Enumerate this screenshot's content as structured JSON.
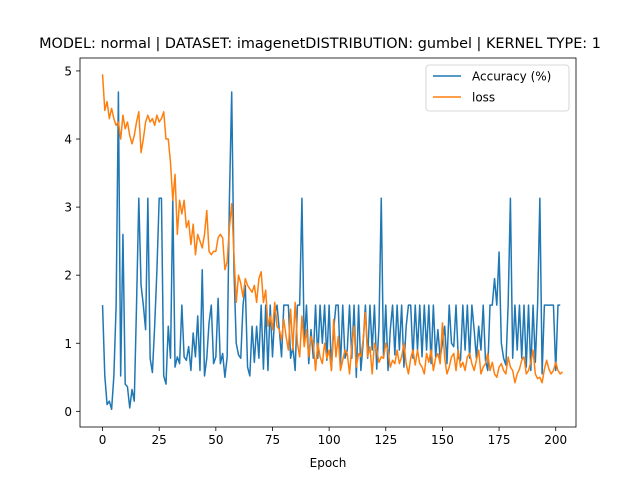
{
  "chart_data": {
    "type": "line",
    "title": "MODEL: normal | DATASET: imagenetDISTRIBUTION: gumbel | KERNEL TYPE: 1",
    "xlabel": "Epoch",
    "ylabel": "",
    "xlim": [
      -9.95,
      208.95
    ],
    "ylim": [
      -0.23,
      5.19
    ],
    "xticks": [
      0,
      25,
      50,
      75,
      100,
      125,
      150,
      175,
      200
    ],
    "yticks": [
      0,
      1,
      2,
      3,
      4,
      5
    ],
    "grid": false,
    "legend": "top-right",
    "series": [
      {
        "name": "Accuracy (%)",
        "color": "#1f77b4",
        "values": [
          1.56,
          0.52,
          0.1,
          0.15,
          0.03,
          0.52,
          1.56,
          4.69,
          0.52,
          2.6,
          0.4,
          0.36,
          0.05,
          0.32,
          0.15,
          1.56,
          3.13,
          1.85,
          1.56,
          1.2,
          3.13,
          0.78,
          0.57,
          1.25,
          2.08,
          3.13,
          3.13,
          0.52,
          0.4,
          1.25,
          0.78,
          3.13,
          0.65,
          0.8,
          0.7,
          1.56,
          0.8,
          0.75,
          0.95,
          0.6,
          1.15,
          0.8,
          1.4,
          0.6,
          2.08,
          0.52,
          0.78,
          1.3,
          1.56,
          0.7,
          0.8,
          1.66,
          0.7,
          0.85,
          0.5,
          0.8,
          3.13,
          4.69,
          2.08,
          1.0,
          0.83,
          0.78,
          1.56,
          1.85,
          0.65,
          0.52,
          1.25,
          0.72,
          1.25,
          0.78,
          1.56,
          0.62,
          1.56,
          0.6,
          1.56,
          0.8,
          1.42,
          1.56,
          1.2,
          0.8,
          1.56,
          1.56,
          1.56,
          0.78,
          0.95,
          0.6,
          1.56,
          1.56,
          3.13,
          1.0,
          1.56,
          0.7,
          1.2,
          0.78,
          1.56,
          0.78,
          1.56,
          1.0,
          1.56,
          0.75,
          1.56,
          0.6,
          1.2,
          1.56,
          1.56,
          0.65,
          1.56,
          0.78,
          0.9,
          1.56,
          0.78,
          1.56,
          0.5,
          1.56,
          0.6,
          1.0,
          1.56,
          0.78,
          1.56,
          0.9,
          1.56,
          0.62,
          1.25,
          3.13,
          0.78,
          1.56,
          0.6,
          1.2,
          1.56,
          0.83,
          1.56,
          0.9,
          1.56,
          0.65,
          1.25,
          1.56,
          1.56,
          0.78,
          1.56,
          0.9,
          1.56,
          0.8,
          1.56,
          0.9,
          1.56,
          0.7,
          1.56,
          0.8,
          1.2,
          0.78,
          1.0,
          1.25,
          0.7,
          1.56,
          1.0,
          0.95,
          1.56,
          0.78,
          0.75,
          1.56,
          0.9,
          1.56,
          0.78,
          1.56,
          1.2,
          0.78,
          1.25,
          0.9,
          1.56,
          0.75,
          0.6,
          1.56,
          1.56,
          1.95,
          1.56,
          2.34,
          1.0,
          0.78,
          0.68,
          1.56,
          3.13,
          0.78,
          1.56,
          0.9,
          1.56,
          0.78,
          1.56,
          0.65,
          1.56,
          0.6,
          1.56,
          0.72,
          1.56,
          3.13,
          0.55,
          1.56,
          1.56,
          1.56,
          1.56,
          1.56,
          0.6,
          1.56,
          1.56
        ]
      },
      {
        "name": "loss",
        "color": "#ff7f0e",
        "values": [
          4.95,
          4.42,
          4.55,
          4.3,
          4.45,
          4.3,
          4.2,
          4.25,
          4.0,
          4.35,
          4.15,
          4.25,
          4.05,
          3.93,
          4.05,
          4.25,
          4.4,
          3.8,
          4.0,
          4.25,
          4.35,
          4.25,
          4.3,
          4.2,
          4.35,
          4.25,
          4.3,
          4.4,
          4.0,
          4.0,
          3.65,
          3.1,
          3.48,
          2.6,
          3.1,
          2.9,
          3.1,
          2.7,
          2.8,
          2.45,
          2.75,
          2.3,
          2.6,
          2.5,
          2.4,
          2.6,
          2.95,
          2.35,
          2.3,
          2.35,
          2.35,
          2.55,
          2.6,
          2.55,
          2.08,
          2.2,
          2.7,
          3.05,
          2.3,
          1.6,
          2.0,
          1.88,
          1.68,
          1.95,
          1.85,
          1.8,
          1.75,
          1.85,
          1.6,
          1.95,
          2.05,
          1.6,
          1.78,
          1.25,
          1.4,
          1.2,
          1.6,
          1.25,
          1.2,
          1.05,
          1.35,
          1.1,
          0.9,
          1.5,
          0.9,
          1.6,
          1.0,
          0.8,
          1.4,
          0.95,
          1.2,
          0.8,
          1.1,
          1.0,
          0.6,
          1.0,
          0.8,
          0.7,
          1.0,
          0.78,
          0.9,
          0.6,
          1.35,
          0.8,
          1.1,
          0.6,
          0.75,
          0.9,
          0.85,
          0.55,
          0.95,
          1.25,
          0.65,
          0.85,
          0.8,
          1.05,
          1.45,
          0.8,
          0.95,
          0.55,
          1.0,
          0.9,
          0.72,
          0.8,
          0.78,
          1.0,
          0.88,
          0.65,
          0.75,
          0.7,
          0.9,
          0.7,
          0.8,
          1.0,
          0.7,
          0.55,
          0.78,
          0.9,
          0.68,
          0.9,
          0.7,
          0.65,
          0.55,
          0.85,
          0.72,
          0.9,
          0.6,
          0.78,
          0.85,
          0.7,
          1.3,
          0.78,
          0.55,
          0.65,
          0.8,
          0.85,
          0.6,
          0.9,
          0.65,
          0.72,
          0.6,
          0.8,
          0.85,
          0.7,
          0.6,
          0.75,
          0.9,
          0.55,
          0.65,
          0.7,
          0.85,
          0.6,
          0.72,
          0.55,
          0.5,
          0.65,
          0.7,
          0.6,
          0.55,
          0.8,
          0.65,
          0.6,
          0.42,
          0.55,
          0.62,
          0.75,
          0.8,
          0.55,
          0.6,
          0.72,
          0.9,
          0.55,
          0.48,
          0.5,
          0.42,
          0.62,
          0.75,
          0.62,
          0.55,
          0.6,
          0.72,
          0.6,
          0.55,
          0.58
        ]
      }
    ]
  }
}
